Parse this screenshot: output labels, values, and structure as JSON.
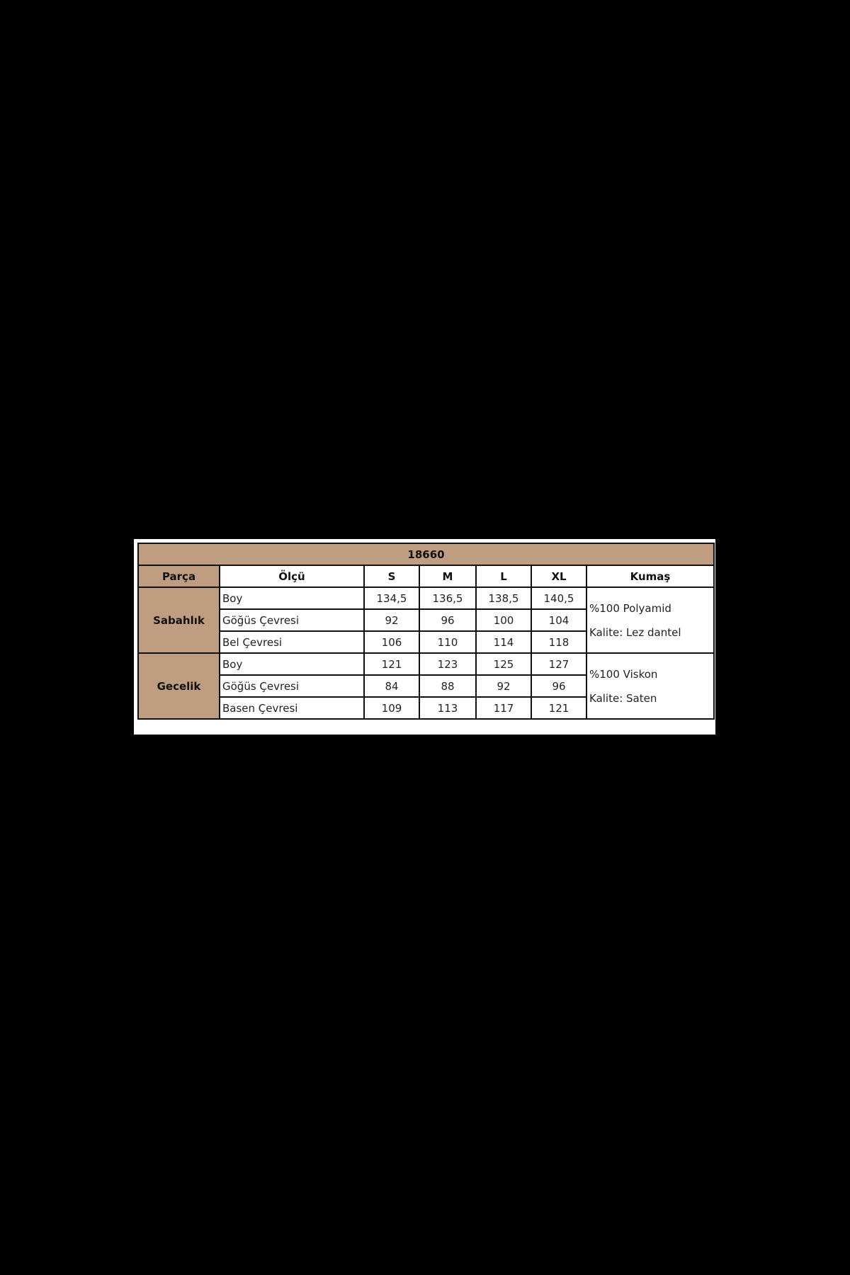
{
  "title": "18660",
  "headers": [
    "Parça",
    "Ölçü",
    "S",
    "M",
    "L",
    "XL",
    "Kumaş"
  ],
  "groups": [
    {
      "name": "Sabahlık",
      "rows": [
        {
          "measure": "Boy",
          "values": [
            "134,5",
            "136,5",
            "138,5",
            "140,5"
          ]
        },
        {
          "measure": "Göğüs Çevresi",
          "values": [
            "92",
            "96",
            "100",
            "104"
          ]
        },
        {
          "measure": "Bel Çevresi",
          "values": [
            "106",
            "110",
            "114",
            "118"
          ]
        }
      ],
      "fabric": [
        "%100 Polyamid",
        "Kalite: Lez dantel"
      ]
    },
    {
      "name": "Gecelik",
      "rows": [
        {
          "measure": "Boy",
          "values": [
            "121",
            "123",
            "125",
            "127"
          ]
        },
        {
          "measure": "Göğüs Çevresi",
          "values": [
            "84",
            "88",
            "92",
            "96"
          ]
        },
        {
          "measure": "Basen Çevresi",
          "values": [
            "109",
            "113",
            "117",
            "121"
          ]
        }
      ],
      "fabric": [
        "%100 Viskon",
        "Kalite: Saten"
      ]
    }
  ],
  "colors": {
    "header_bg": "#bf9d80",
    "background": "#000000"
  }
}
